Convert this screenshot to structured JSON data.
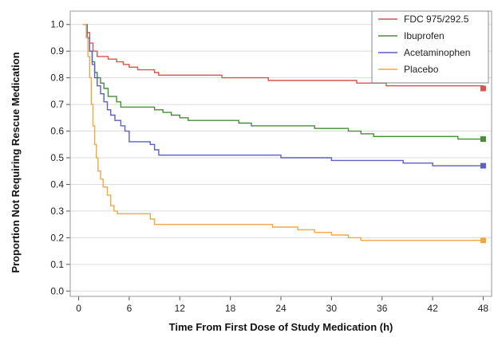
{
  "chart_data": {
    "type": "line",
    "title": "",
    "xlabel": "Time From First Dose of Study Medication (h)",
    "ylabel": "Proportion Not Requiring Rescue Medication",
    "xlim": [
      -1,
      49
    ],
    "ylim": [
      -0.02,
      1.05
    ],
    "xticks": [
      0,
      6,
      12,
      18,
      24,
      30,
      36,
      42,
      48
    ],
    "yticks": [
      0.0,
      0.1,
      0.2,
      0.3,
      0.4,
      0.5,
      0.6,
      0.7,
      0.8,
      0.9,
      1.0
    ],
    "ytick_labels": [
      "0.0",
      "0.1",
      "0.2",
      "0.3",
      "0.4",
      "0.5",
      "0.6",
      "0.7",
      "0.8",
      "0.9",
      "1.0"
    ],
    "grid": "horizontal",
    "legend_position": "top-right",
    "step": true,
    "series": [
      {
        "name": "FDC 975/292.5",
        "color": "#d9534f",
        "points": [
          [
            0.5,
            1.0
          ],
          [
            1.0,
            0.97
          ],
          [
            1.3,
            0.93
          ],
          [
            1.7,
            0.9
          ],
          [
            2.2,
            0.88
          ],
          [
            3.5,
            0.87
          ],
          [
            4.5,
            0.86
          ],
          [
            5.3,
            0.85
          ],
          [
            6.0,
            0.84
          ],
          [
            7.0,
            0.83
          ],
          [
            9.0,
            0.82
          ],
          [
            9.5,
            0.81
          ],
          [
            17.0,
            0.8
          ],
          [
            22.5,
            0.79
          ],
          [
            33.0,
            0.78
          ],
          [
            36.5,
            0.77
          ],
          [
            48.0,
            0.76
          ]
        ]
      },
      {
        "name": "Ibuprofen",
        "color": "#4a8a3c",
        "points": [
          [
            0.5,
            1.0
          ],
          [
            1.0,
            0.95
          ],
          [
            1.3,
            0.9
          ],
          [
            1.6,
            0.86
          ],
          [
            1.9,
            0.82
          ],
          [
            2.2,
            0.8
          ],
          [
            2.6,
            0.78
          ],
          [
            3.0,
            0.76
          ],
          [
            3.5,
            0.73
          ],
          [
            4.5,
            0.71
          ],
          [
            5.0,
            0.69
          ],
          [
            9.0,
            0.68
          ],
          [
            10.0,
            0.67
          ],
          [
            11.0,
            0.66
          ],
          [
            12.0,
            0.65
          ],
          [
            13.0,
            0.64
          ],
          [
            19.0,
            0.63
          ],
          [
            20.5,
            0.62
          ],
          [
            28.0,
            0.61
          ],
          [
            32.0,
            0.6
          ],
          [
            33.5,
            0.59
          ],
          [
            35.0,
            0.58
          ],
          [
            45.0,
            0.57
          ],
          [
            48.0,
            0.57
          ]
        ]
      },
      {
        "name": "Acetaminophen",
        "color": "#5b5fc7",
        "points": [
          [
            0.5,
            1.0
          ],
          [
            1.0,
            0.95
          ],
          [
            1.3,
            0.9
          ],
          [
            1.6,
            0.85
          ],
          [
            1.9,
            0.8
          ],
          [
            2.2,
            0.77
          ],
          [
            2.6,
            0.74
          ],
          [
            3.0,
            0.71
          ],
          [
            3.4,
            0.68
          ],
          [
            3.8,
            0.66
          ],
          [
            4.3,
            0.64
          ],
          [
            5.0,
            0.62
          ],
          [
            5.5,
            0.6
          ],
          [
            6.0,
            0.56
          ],
          [
            8.5,
            0.55
          ],
          [
            9.0,
            0.53
          ],
          [
            9.5,
            0.51
          ],
          [
            24.0,
            0.5
          ],
          [
            30.0,
            0.49
          ],
          [
            38.5,
            0.48
          ],
          [
            42.0,
            0.47
          ],
          [
            48.0,
            0.47
          ]
        ]
      },
      {
        "name": "Placebo",
        "color": "#f0a845",
        "points": [
          [
            0.5,
            1.0
          ],
          [
            0.9,
            0.95
          ],
          [
            1.1,
            0.88
          ],
          [
            1.3,
            0.8
          ],
          [
            1.5,
            0.7
          ],
          [
            1.7,
            0.62
          ],
          [
            1.9,
            0.55
          ],
          [
            2.1,
            0.5
          ],
          [
            2.3,
            0.45
          ],
          [
            2.6,
            0.42
          ],
          [
            2.9,
            0.39
          ],
          [
            3.4,
            0.36
          ],
          [
            3.8,
            0.32
          ],
          [
            4.2,
            0.3
          ],
          [
            4.6,
            0.29
          ],
          [
            8.5,
            0.27
          ],
          [
            9.0,
            0.25
          ],
          [
            23.0,
            0.24
          ],
          [
            26.0,
            0.23
          ],
          [
            28.0,
            0.22
          ],
          [
            30.0,
            0.21
          ],
          [
            32.0,
            0.2
          ],
          [
            33.5,
            0.19
          ],
          [
            48.0,
            0.19
          ]
        ]
      }
    ]
  }
}
